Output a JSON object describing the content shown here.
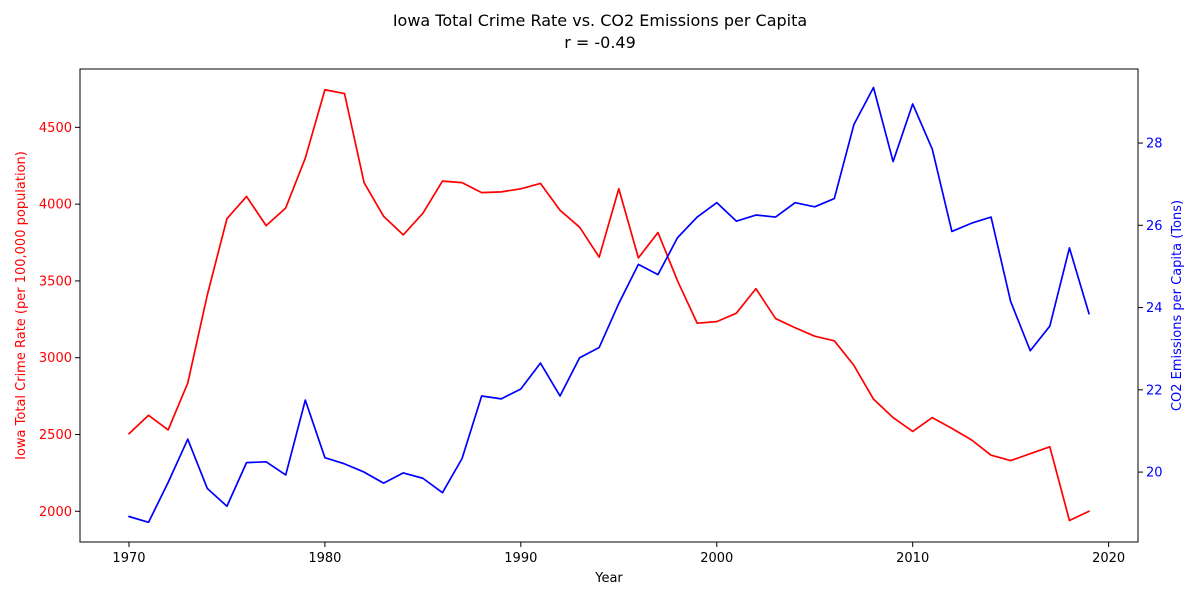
{
  "colors": {
    "crime": "#ff0000",
    "co2": "#0000ff",
    "axis": "#000000",
    "background": "#ffffff"
  },
  "chart_data": {
    "type": "line",
    "title": "Iowa Total Crime Rate vs. CO2 Emissions per Capita",
    "subtitle": "r = -0.49",
    "xlabel": "Year",
    "ylabel_left": "Iowa Total Crime Rate (per 100,000 population)",
    "ylabel_right": "CO2 Emissions per Capita (Tons)",
    "grid": false,
    "legend": "none",
    "xlim": [
      1967.5,
      2021.5
    ],
    "ylim_left": [
      1800,
      4880
    ],
    "ylim_right": [
      18.3,
      29.8
    ],
    "x_ticks": [
      1970,
      1980,
      1990,
      2000,
      2010,
      2020
    ],
    "y_ticks_left": [
      2000,
      2500,
      3000,
      3500,
      4000,
      4500
    ],
    "y_ticks_right": [
      20,
      22,
      24,
      26,
      28
    ],
    "x": [
      1970,
      1971,
      1972,
      1973,
      1974,
      1975,
      1976,
      1977,
      1978,
      1979,
      1980,
      1981,
      1982,
      1983,
      1984,
      1985,
      1986,
      1987,
      1988,
      1989,
      1990,
      1991,
      1992,
      1993,
      1994,
      1995,
      1996,
      1997,
      1998,
      1999,
      2000,
      2001,
      2002,
      2003,
      2004,
      2005,
      2006,
      2007,
      2008,
      2009,
      2010,
      2011,
      2012,
      2013,
      2014,
      2015,
      2016,
      2017,
      2018,
      2019
    ],
    "series": [
      {
        "axis": "left",
        "color": "#ff0000",
        "values": [
          2505,
          2625,
          2530,
          2835,
          3410,
          3905,
          4050,
          3860,
          3975,
          4300,
          4745,
          4720,
          4140,
          3920,
          3800,
          3940,
          4150,
          4140,
          4075,
          4080,
          4100,
          4135,
          3960,
          3850,
          3655,
          4100,
          3650,
          3815,
          3500,
          3225,
          3235,
          3290,
          3450,
          3255,
          3195,
          3140,
          3110,
          2950,
          2730,
          2610,
          2520,
          2610,
          2540,
          2465,
          2365,
          2330,
          2375,
          2420,
          1940,
          2000
        ]
      },
      {
        "axis": "right",
        "color": "#0000ff",
        "values": [
          18.92,
          18.78,
          19.75,
          20.8,
          19.6,
          19.17,
          20.23,
          20.25,
          19.93,
          21.75,
          20.35,
          20.2,
          20.0,
          19.73,
          19.98,
          19.85,
          19.5,
          20.33,
          21.85,
          21.78,
          22.02,
          22.65,
          21.85,
          22.78,
          23.03,
          24.1,
          25.05,
          24.8,
          25.7,
          26.2,
          26.55,
          26.1,
          26.25,
          26.2,
          26.55,
          26.45,
          26.65,
          28.45,
          29.35,
          27.55,
          28.95,
          27.85,
          25.85,
          26.05,
          26.2,
          24.15,
          22.95,
          23.55,
          25.45,
          23.85
        ]
      }
    ]
  }
}
